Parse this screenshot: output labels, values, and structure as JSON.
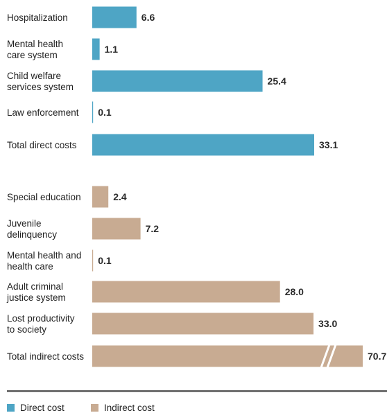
{
  "chart_data": {
    "type": "bar",
    "orientation": "horizontal",
    "groups": [
      {
        "series": "Direct cost",
        "items": [
          {
            "label": [
              "Hospitalization"
            ],
            "value": 6.6,
            "value_label": "6.6"
          },
          {
            "label": [
              "Mental health",
              "care system"
            ],
            "value": 1.1,
            "value_label": "1.1"
          },
          {
            "label": [
              "Child welfare",
              "services system"
            ],
            "value": 25.4,
            "value_label": "25.4"
          },
          {
            "label": [
              "Law enforcement"
            ],
            "value": 0.1,
            "value_label": "0.1"
          },
          {
            "label": [
              "Total direct costs"
            ],
            "value": 33.1,
            "value_label": "33.1"
          }
        ]
      },
      {
        "series": "Indirect cost",
        "items": [
          {
            "label": [
              "Special education"
            ],
            "value": 2.4,
            "value_label": "2.4"
          },
          {
            "label": [
              "Juvenile",
              "delinquency"
            ],
            "value": 7.2,
            "value_label": "7.2"
          },
          {
            "label": [
              "Mental health and",
              "health care"
            ],
            "value": 0.1,
            "value_label": "0.1"
          },
          {
            "label": [
              "Adult criminal",
              "justice system"
            ],
            "value": 28.0,
            "value_label": "28.0"
          },
          {
            "label": [
              "Lost productivity",
              "to society"
            ],
            "value": 33.0,
            "value_label": "33.0"
          },
          {
            "label": [
              "Total indirect costs"
            ],
            "value": 70.7,
            "value_label": "70.7",
            "axis_break": true
          }
        ]
      }
    ],
    "legend": [
      {
        "name": "Direct cost",
        "color": "#4ea5c5"
      },
      {
        "name": "Indirect cost",
        "color": "#c8ab92"
      }
    ],
    "legend_position": "bottom-left",
    "grid": false
  }
}
